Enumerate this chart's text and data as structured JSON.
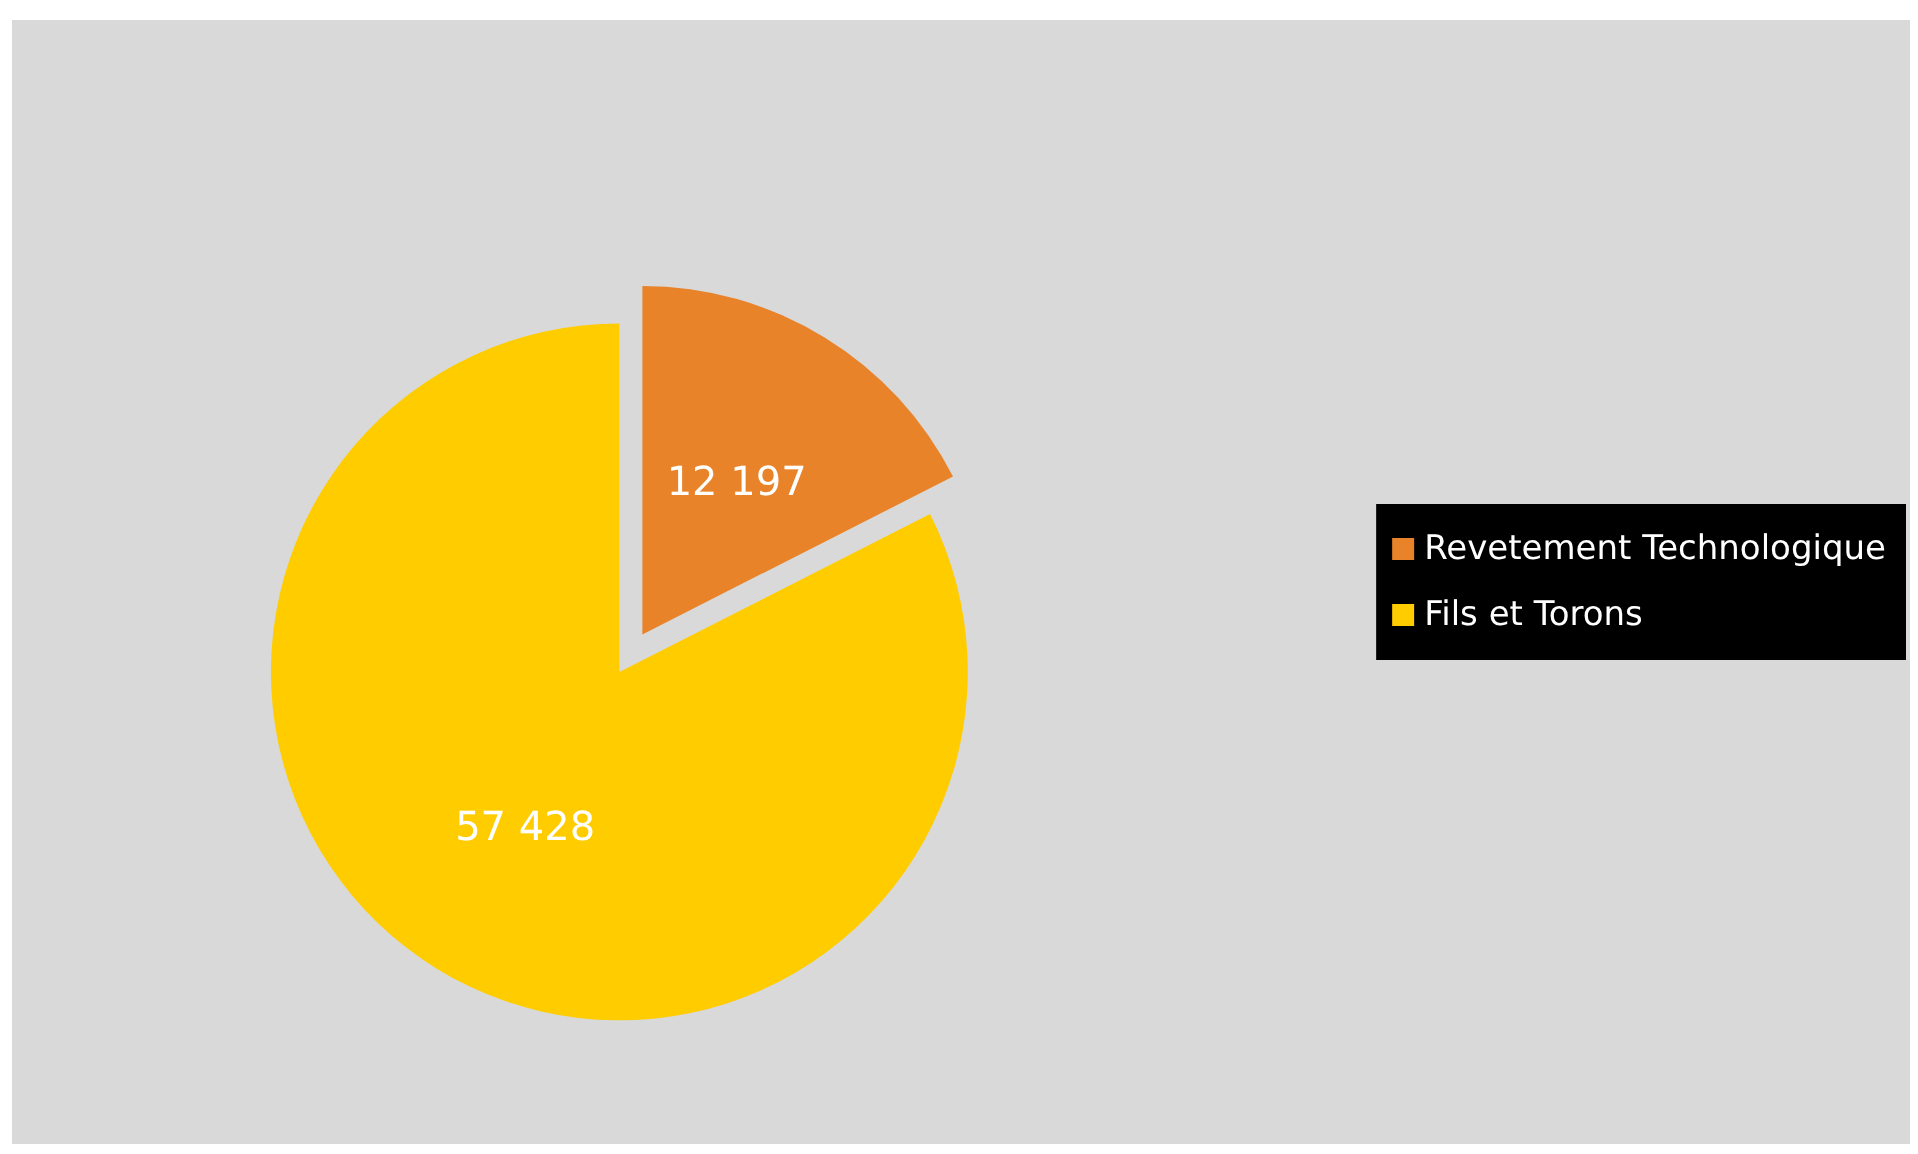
{
  "chart_data": {
    "type": "pie",
    "categories": [
      "Revetement Technologique",
      "Fils et Torons"
    ],
    "values": [
      12197,
      57428
    ],
    "colors": [
      "#e8832a",
      "#ffcc00"
    ],
    "data_labels": true,
    "legend": "right"
  }
}
